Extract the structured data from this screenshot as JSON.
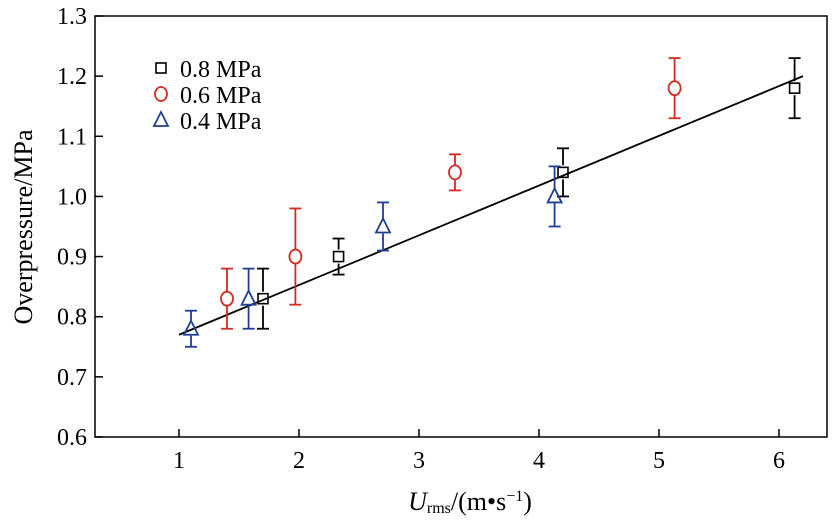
{
  "chart_data": {
    "type": "scatter",
    "xlabel_main": "U",
    "xlabel_sub": "rms",
    "xlabel_rest": "/(m•s",
    "xlabel_exp": "−1",
    "xlabel_end": ")",
    "ylabel": "Overpressure/MPa",
    "xlim": [
      0.3,
      6.4
    ],
    "ylim": [
      0.6,
      1.3
    ],
    "xticks": [
      "1",
      "2",
      "3",
      "4",
      "5",
      "6"
    ],
    "yticks": [
      "0.6",
      "0.7",
      "0.8",
      "0.9",
      "1.0",
      "1.1",
      "1.2",
      "1.3"
    ],
    "legend_position": "top-left",
    "grid": false,
    "series": [
      {
        "name": "0.8 MPa",
        "marker": "square",
        "color": "#000000",
        "points": [
          {
            "x": 1.7,
            "y": 0.83,
            "err": 0.05
          },
          {
            "x": 2.33,
            "y": 0.9,
            "err": 0.03
          },
          {
            "x": 4.2,
            "y": 1.04,
            "err": 0.04
          },
          {
            "x": 6.13,
            "y": 1.18,
            "err": 0.05
          }
        ]
      },
      {
        "name": "0.6 MPa",
        "marker": "circle",
        "color": "#d42a20",
        "points": [
          {
            "x": 1.4,
            "y": 0.83,
            "err": 0.05
          },
          {
            "x": 1.97,
            "y": 0.9,
            "err": 0.08
          },
          {
            "x": 3.3,
            "y": 1.04,
            "err": 0.03
          },
          {
            "x": 5.13,
            "y": 1.18,
            "err": 0.05
          }
        ]
      },
      {
        "name": "0.4 MPa",
        "marker": "triangle",
        "color": "#1f3d96",
        "points": [
          {
            "x": 1.1,
            "y": 0.78,
            "err": 0.03
          },
          {
            "x": 1.58,
            "y": 0.83,
            "err": 0.05
          },
          {
            "x": 2.7,
            "y": 0.95,
            "err": 0.04
          },
          {
            "x": 4.13,
            "y": 1.0,
            "err": 0.05
          }
        ]
      }
    ],
    "fit_line": {
      "x": [
        1.0,
        6.2
      ],
      "y": [
        0.77,
        1.2
      ],
      "color": "#000000"
    }
  }
}
